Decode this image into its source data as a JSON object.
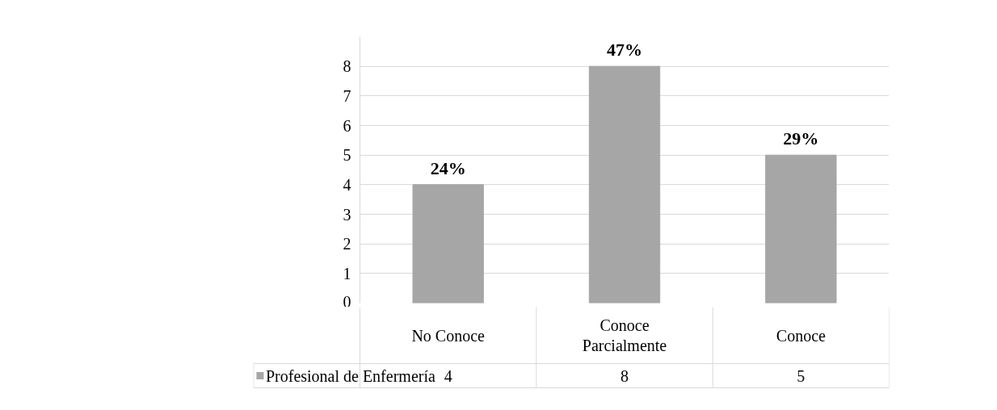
{
  "chart_data": {
    "type": "bar",
    "categories": [
      "No Conoce",
      "Conoce Parcialmente",
      "Conoce"
    ],
    "series": [
      {
        "name": "Profesional  de Enfermería",
        "color": "#a6a6a6",
        "values": [
          4,
          8,
          5
        ]
      }
    ],
    "annotations": [
      "24%",
      "47%",
      "29%"
    ],
    "ylim": [
      0,
      9
    ],
    "yticks": [
      0,
      1,
      2,
      3,
      4,
      5,
      6,
      7,
      8
    ],
    "grid": "y",
    "legend": "bottom",
    "data_labels": true
  }
}
